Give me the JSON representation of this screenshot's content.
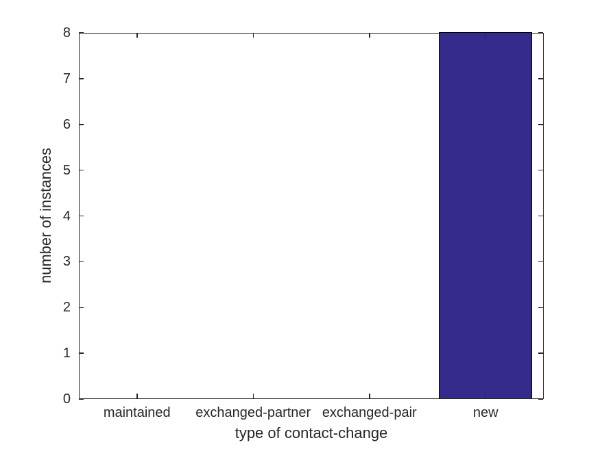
{
  "chart_data": {
    "type": "bar",
    "title": "",
    "categories": [
      "maintained",
      "exchanged-partner",
      "exchanged-pair",
      "new"
    ],
    "values": [
      0,
      0,
      0,
      8
    ],
    "xlabel": "type of contact-change",
    "ylabel": "number of instances",
    "ylim": [
      0,
      8
    ],
    "yticks": [
      0,
      1,
      2,
      3,
      4,
      5,
      6,
      7,
      8
    ],
    "bar_width_fraction": 0.8,
    "bar_color": "#352b8c",
    "bar_edge_color": "#000000",
    "axis_color": "#262626",
    "text_color": "#262626",
    "background_color": "#ffffff",
    "grid": "off",
    "box": "on",
    "tick_direction": "in",
    "legend": "none"
  }
}
